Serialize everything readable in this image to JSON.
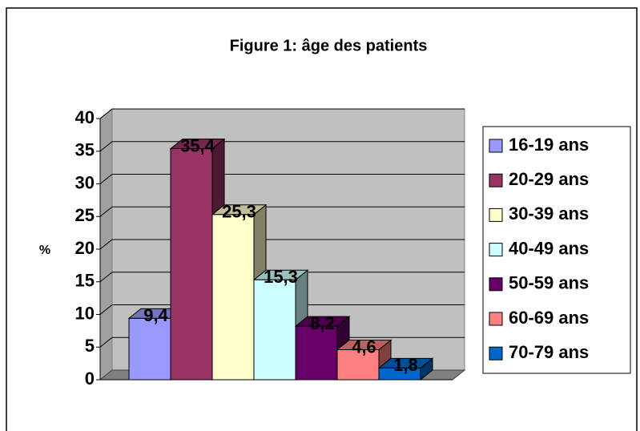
{
  "chart_data": {
    "type": "bar",
    "title": "Figure 1: âge des patients",
    "y_label": "%",
    "ylim": [
      0,
      40
    ],
    "yticks": [
      0,
      5,
      10,
      15,
      20,
      25,
      30,
      35,
      40
    ],
    "grid": true,
    "legend": "right",
    "series": [
      {
        "name": "16-19 ans",
        "color": "#9999ff",
        "values": [
          9.4
        ],
        "value_labels": [
          "9,4"
        ]
      },
      {
        "name": "20-29 ans",
        "color": "#993366",
        "values": [
          35.4
        ],
        "value_labels": [
          "35,4"
        ]
      },
      {
        "name": "30-39 ans",
        "color": "#ffffcc",
        "values": [
          25.3
        ],
        "value_labels": [
          "25,3"
        ]
      },
      {
        "name": "40-49 ans",
        "color": "#ccffff",
        "values": [
          15.3
        ],
        "value_labels": [
          "15,3"
        ]
      },
      {
        "name": "50-59 ans",
        "color": "#660066",
        "values": [
          8.2
        ],
        "value_labels": [
          "8,2"
        ]
      },
      {
        "name": "60-69 ans",
        "color": "#ff8080",
        "values": [
          4.6
        ],
        "value_labels": [
          "4,6"
        ]
      },
      {
        "name": "70-79 ans",
        "color": "#0066cc",
        "values": [
          1.8
        ],
        "value_labels": [
          "1,8"
        ]
      }
    ]
  }
}
